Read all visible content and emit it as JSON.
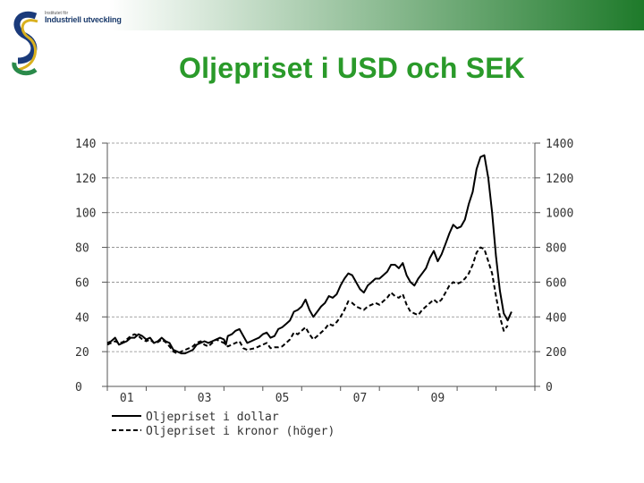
{
  "slide": {
    "title": "Oljepriset i USD och SEK",
    "logo": {
      "caption_top": "Institutet för",
      "caption_bottom": "Industriell utveckling",
      "colors": {
        "blue": "#1a3a7a",
        "gold": "#d9b01e",
        "green": "#2a8a4a"
      }
    },
    "header_gradient": [
      "#ffffff",
      "#1e7a2a"
    ]
  },
  "chart_data": {
    "type": "line",
    "x_ticks": [
      "01",
      "03",
      "05",
      "07",
      "09"
    ],
    "y_left": {
      "ticks": [
        "0",
        "20",
        "40",
        "60",
        "80",
        "100",
        "120",
        "140"
      ],
      "range": [
        0,
        140
      ]
    },
    "y_right": {
      "ticks": [
        "0",
        "200",
        "400",
        "600",
        "800",
        "1000",
        "1200",
        "1400"
      ],
      "range": [
        0,
        1400
      ]
    },
    "grid": "dashed horizontal lines",
    "legend_position": "bottom-left",
    "series": [
      {
        "name": "Oljepriset i dollar",
        "axis": "left",
        "style": "solid",
        "color": "#000000",
        "points": [
          [
            2000.0,
            25
          ],
          [
            2000.1,
            26
          ],
          [
            2000.2,
            28
          ],
          [
            2000.3,
            24
          ],
          [
            2000.4,
            25
          ],
          [
            2000.5,
            26
          ],
          [
            2000.6,
            28
          ],
          [
            2000.7,
            28
          ],
          [
            2000.8,
            30
          ],
          [
            2000.9,
            29
          ],
          [
            2001.0,
            27
          ],
          [
            2001.1,
            28
          ],
          [
            2001.2,
            25
          ],
          [
            2001.3,
            26
          ],
          [
            2001.4,
            28
          ],
          [
            2001.5,
            26
          ],
          [
            2001.6,
            25
          ],
          [
            2001.7,
            21
          ],
          [
            2001.8,
            20
          ],
          [
            2001.9,
            19
          ],
          [
            2002.0,
            19
          ],
          [
            2002.1,
            20
          ],
          [
            2002.2,
            21
          ],
          [
            2002.3,
            24
          ],
          [
            2002.4,
            25
          ],
          [
            2002.5,
            26
          ],
          [
            2002.6,
            25
          ],
          [
            2002.7,
            26
          ],
          [
            2002.8,
            27
          ],
          [
            2002.9,
            28
          ],
          [
            2003.0,
            27
          ],
          [
            2003.05,
            24
          ],
          [
            2003.1,
            29
          ],
          [
            2003.2,
            30
          ],
          [
            2003.3,
            32
          ],
          [
            2003.4,
            33
          ],
          [
            2003.5,
            29
          ],
          [
            2003.6,
            25
          ],
          [
            2003.7,
            26
          ],
          [
            2003.8,
            27
          ],
          [
            2003.9,
            28
          ],
          [
            2004.0,
            30
          ],
          [
            2004.1,
            31
          ],
          [
            2004.2,
            28
          ],
          [
            2004.3,
            29
          ],
          [
            2004.4,
            33
          ],
          [
            2004.5,
            34
          ],
          [
            2004.6,
            36
          ],
          [
            2004.7,
            38
          ],
          [
            2004.8,
            43
          ],
          [
            2004.9,
            44
          ],
          [
            2005.0,
            46
          ],
          [
            2005.1,
            50
          ],
          [
            2005.2,
            44
          ],
          [
            2005.3,
            40
          ],
          [
            2005.4,
            43
          ],
          [
            2005.5,
            46
          ],
          [
            2005.6,
            48
          ],
          [
            2005.7,
            52
          ],
          [
            2005.8,
            51
          ],
          [
            2005.9,
            53
          ],
          [
            2006.0,
            58
          ],
          [
            2006.1,
            62
          ],
          [
            2006.2,
            65
          ],
          [
            2006.3,
            64
          ],
          [
            2006.4,
            60
          ],
          [
            2006.5,
            56
          ],
          [
            2006.6,
            54
          ],
          [
            2006.7,
            58
          ],
          [
            2006.8,
            60
          ],
          [
            2006.9,
            62
          ],
          [
            2007.0,
            62
          ],
          [
            2007.1,
            64
          ],
          [
            2007.2,
            66
          ],
          [
            2007.3,
            70
          ],
          [
            2007.4,
            70
          ],
          [
            2007.5,
            68
          ],
          [
            2007.6,
            71
          ],
          [
            2007.7,
            64
          ],
          [
            2007.8,
            60
          ],
          [
            2007.9,
            58
          ],
          [
            2008.0,
            62
          ],
          [
            2008.1,
            65
          ],
          [
            2008.2,
            68
          ],
          [
            2008.3,
            74
          ],
          [
            2008.4,
            78
          ],
          [
            2008.5,
            72
          ],
          [
            2008.6,
            76
          ],
          [
            2008.7,
            82
          ],
          [
            2008.8,
            88
          ],
          [
            2008.9,
            93
          ],
          [
            2009.0,
            91
          ],
          [
            2009.1,
            92
          ],
          [
            2009.2,
            96
          ],
          [
            2009.3,
            105
          ],
          [
            2009.4,
            112
          ],
          [
            2009.5,
            125
          ],
          [
            2009.6,
            132
          ],
          [
            2009.7,
            133
          ],
          [
            2009.8,
            120
          ],
          [
            2009.9,
            100
          ],
          [
            2010.0,
            75
          ],
          [
            2010.1,
            55
          ],
          [
            2010.2,
            42
          ],
          [
            2010.3,
            38
          ],
          [
            2010.4,
            43
          ]
        ]
      },
      {
        "name": "Oljepriset i kronor (höger)",
        "axis": "right",
        "style": "dashed",
        "color": "#000000",
        "points": [
          [
            2000.0,
            240
          ],
          [
            2000.1,
            250
          ],
          [
            2000.2,
            260
          ],
          [
            2000.3,
            250
          ],
          [
            2000.4,
            255
          ],
          [
            2000.5,
            270
          ],
          [
            2000.6,
            290
          ],
          [
            2000.7,
            300
          ],
          [
            2000.8,
            290
          ],
          [
            2000.9,
            270
          ],
          [
            2001.0,
            260
          ],
          [
            2001.1,
            270
          ],
          [
            2001.2,
            250
          ],
          [
            2001.3,
            255
          ],
          [
            2001.4,
            270
          ],
          [
            2001.5,
            255
          ],
          [
            2001.6,
            230
          ],
          [
            2001.7,
            200
          ],
          [
            2001.8,
            190
          ],
          [
            2001.9,
            200
          ],
          [
            2002.0,
            210
          ],
          [
            2002.1,
            220
          ],
          [
            2002.2,
            230
          ],
          [
            2002.3,
            250
          ],
          [
            2002.4,
            260
          ],
          [
            2002.5,
            240
          ],
          [
            2002.6,
            230
          ],
          [
            2002.7,
            250
          ],
          [
            2002.8,
            270
          ],
          [
            2002.9,
            260
          ],
          [
            2003.0,
            250
          ],
          [
            2003.1,
            230
          ],
          [
            2003.2,
            240
          ],
          [
            2003.3,
            250
          ],
          [
            2003.4,
            260
          ],
          [
            2003.5,
            220
          ],
          [
            2003.6,
            210
          ],
          [
            2003.7,
            215
          ],
          [
            2003.8,
            220
          ],
          [
            2003.9,
            230
          ],
          [
            2004.0,
            240
          ],
          [
            2004.1,
            250
          ],
          [
            2004.2,
            220
          ],
          [
            2004.3,
            225
          ],
          [
            2004.4,
            225
          ],
          [
            2004.5,
            230
          ],
          [
            2004.6,
            250
          ],
          [
            2004.7,
            270
          ],
          [
            2004.8,
            310
          ],
          [
            2004.9,
            300
          ],
          [
            2005.0,
            320
          ],
          [
            2005.1,
            340
          ],
          [
            2005.2,
            300
          ],
          [
            2005.3,
            270
          ],
          [
            2005.4,
            290
          ],
          [
            2005.5,
            310
          ],
          [
            2005.6,
            330
          ],
          [
            2005.7,
            360
          ],
          [
            2005.8,
            350
          ],
          [
            2005.9,
            370
          ],
          [
            2006.0,
            400
          ],
          [
            2006.1,
            440
          ],
          [
            2006.2,
            490
          ],
          [
            2006.3,
            480
          ],
          [
            2006.4,
            460
          ],
          [
            2006.5,
            450
          ],
          [
            2006.6,
            440
          ],
          [
            2006.7,
            460
          ],
          [
            2006.8,
            470
          ],
          [
            2006.9,
            480
          ],
          [
            2007.0,
            470
          ],
          [
            2007.1,
            490
          ],
          [
            2007.2,
            510
          ],
          [
            2007.3,
            540
          ],
          [
            2007.4,
            520
          ],
          [
            2007.5,
            510
          ],
          [
            2007.6,
            530
          ],
          [
            2007.7,
            470
          ],
          [
            2007.8,
            430
          ],
          [
            2007.9,
            420
          ],
          [
            2008.0,
            410
          ],
          [
            2008.1,
            440
          ],
          [
            2008.2,
            460
          ],
          [
            2008.3,
            480
          ],
          [
            2008.4,
            500
          ],
          [
            2008.5,
            480
          ],
          [
            2008.6,
            500
          ],
          [
            2008.7,
            540
          ],
          [
            2008.8,
            580
          ],
          [
            2008.9,
            600
          ],
          [
            2009.0,
            590
          ],
          [
            2009.1,
            600
          ],
          [
            2009.2,
            620
          ],
          [
            2009.3,
            650
          ],
          [
            2009.4,
            700
          ],
          [
            2009.5,
            770
          ],
          [
            2009.6,
            800
          ],
          [
            2009.7,
            790
          ],
          [
            2009.8,
            720
          ],
          [
            2009.9,
            650
          ],
          [
            2010.0,
            520
          ],
          [
            2010.1,
            400
          ],
          [
            2010.2,
            320
          ],
          [
            2010.3,
            350
          ]
        ]
      }
    ]
  }
}
